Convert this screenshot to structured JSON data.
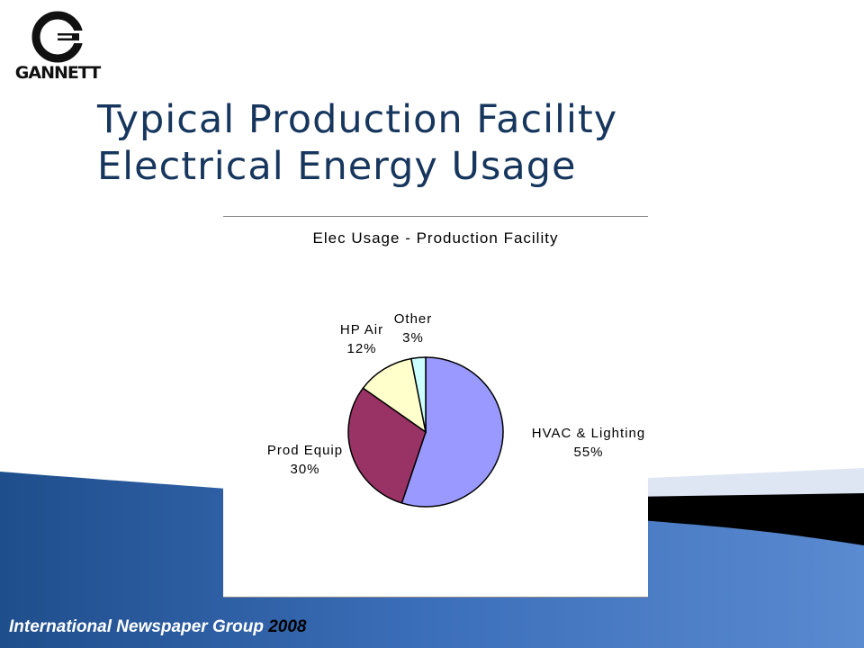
{
  "slide": {
    "title_line1": "Typical Production Facility",
    "title_line2": "Electrical Energy Usage",
    "logo_text": "GANNETT",
    "footer_text": "International Newspaper Group",
    "footer_year": "2008"
  },
  "colors": {
    "title": "#17365d",
    "wave_blue": "#2c5aa3",
    "wave_light": "#6f9ad6"
  },
  "chart_data": {
    "type": "pie",
    "title": "Elec Usage - Production Facility",
    "slices": [
      {
        "label": "HVAC & Lighting",
        "value": 55,
        "value_label": "55%",
        "color": "#9999ff"
      },
      {
        "label": "Prod Equip",
        "value": 30,
        "value_label": "30%",
        "color": "#993366"
      },
      {
        "label": "HP Air",
        "value": 12,
        "value_label": "12%",
        "color": "#ffffcc"
      },
      {
        "label": "Other",
        "value": 3,
        "value_label": "3%",
        "color": "#ccffff"
      }
    ]
  }
}
